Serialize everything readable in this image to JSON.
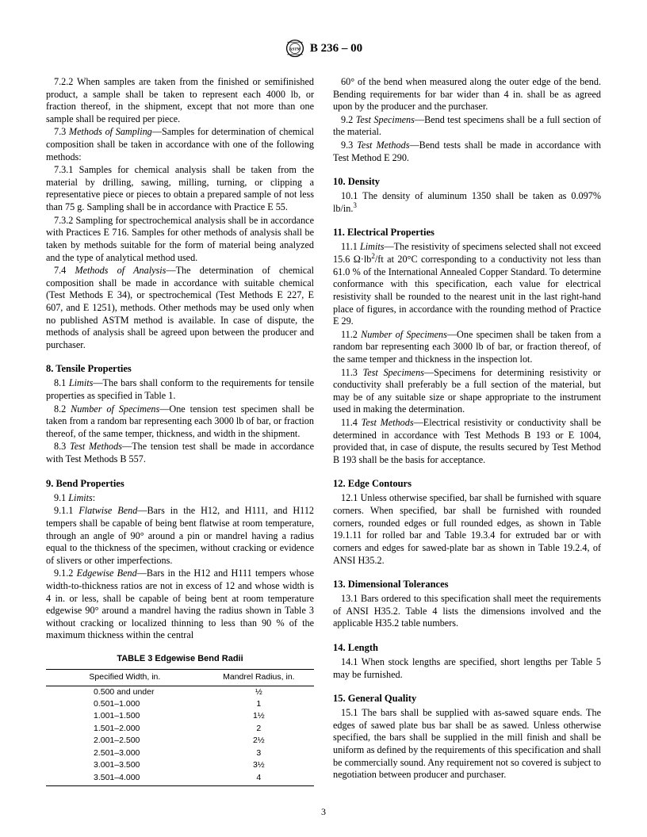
{
  "header": {
    "designation": "B 236 – 00"
  },
  "left": {
    "p722": "7.2.2 When samples are taken from the finished or semifinished product, a sample shall be taken to represent each 4000 lb, or fraction thereof, in the shipment, except that not more than one sample shall be required per piece.",
    "p73_label": "Methods of Sampling",
    "p73": "—Samples for determination of chemical composition shall be taken in accordance with one of the following methods:",
    "p731": "7.3.1 Samples for chemical analysis shall be taken from the material by drilling, sawing, milling, turning, or clipping a representative piece or pieces to obtain a prepared sample of not less than 75 g. Sampling shall be in accordance with Practice E 55.",
    "p732": "7.3.2 Sampling for spectrochemical analysis shall be in accordance with Practices E 716. Samples for other methods of analysis shall be taken by methods suitable for the form of material being analyzed and the type of analytical method used.",
    "p74_label": "Methods of Analysis",
    "p74": "—The determination of chemical composition shall be made in accordance with suitable chemical (Test Methods E 34), or spectrochemical (Test Methods E 227, E 607, and E 1251), methods. Other methods may be used only when no published ASTM method is available. In case of dispute, the methods of analysis shall be agreed upon between the producer and purchaser.",
    "h8": "8. Tensile Properties",
    "p81_label": "Limits",
    "p81": "—The bars shall conform to the requirements for tensile properties as specified in Table 1.",
    "p82_label": "Number of Specimens",
    "p82": "—One tension test specimen shall be taken from a random bar representing each 3000 lb of bar, or fraction thereof, of the same temper, thickness, and width in the shipment.",
    "p83_label": "Test Methods",
    "p83": "—The tension test shall be made in accordance with Test Methods B 557.",
    "h9": "9. Bend Properties",
    "p91_label": "Limits",
    "p91": ":",
    "p911_label": "Flatwise Bend",
    "p911": "—Bars in the H12, and H111, and H112 tempers shall be capable of being bent flatwise at room temperature, through an angle of 90° around a pin or mandrel having a radius equal to the thickness of the specimen, without cracking or evidence of slivers or other imperfections.",
    "p912_label": "Edgewise Bend",
    "p912": "—Bars in the H12 and H111 tempers whose width-to-thickness ratios are not in excess of 12 and whose width is 4 in. or less, shall be capable of being bent at room temperature edgewise 90° around a mandrel having the radius shown in Table 3 without cracking or localized thinning to less than 90 % of the maximum thickness within the central"
  },
  "table3": {
    "title": "TABLE 3  Edgewise Bend Radii",
    "col1": "Specified Width, in.",
    "col2": "Mandrel Radius, in.",
    "rows": [
      [
        "0.500 and under",
        "½"
      ],
      [
        "0.501–1.000",
        "1"
      ],
      [
        "1.001–1.500",
        "1½"
      ],
      [
        "1.501–2.000",
        "2"
      ],
      [
        "2.001–2.500",
        "2½"
      ],
      [
        "2.501–3.000",
        "3"
      ],
      [
        "3.001–3.500",
        "3½"
      ],
      [
        "3.501–4.000",
        "4"
      ]
    ]
  },
  "right": {
    "cont": "60° of the bend when measured along the outer edge of the bend. Bending requirements for bar wider than 4 in. shall be as agreed upon by the producer and the purchaser.",
    "p92_label": "Test Specimens",
    "p92": "—Bend test specimens shall be a full section of the material.",
    "p93_label": "Test Methods",
    "p93": "—Bend tests shall be made in accordance with Test Method E 290.",
    "h10": "10. Density",
    "p101a": "10.1 The density of aluminum 1350 shall be taken as 0.097% lb/in.",
    "h11": "11. Electrical Properties",
    "p111_label": "Limits",
    "p111a": "—The resistivity of specimens selected shall not exceed 15.6 Ω·lb",
    "p111b": "/ft at 20°C corresponding to a conductivity not less than 61.0 % of the International Annealed Copper Standard. To determine conformance with this specification, each value for electrical resistivity shall be rounded to the nearest unit in the last right-hand place of figures, in accordance with the rounding method of Practice E 29.",
    "p112_label": "Number of Specimens",
    "p112": "—One specimen shall be taken from a random bar representing each 3000 lb of bar, or fraction thereof, of the same temper and thickness in the inspection lot.",
    "p113_label": "Test Specimens",
    "p113": "—Specimens for determining resistivity or conductivity shall preferably be a full section of the material, but may be of any suitable size or shape appropriate to the instrument used in making the determination.",
    "p114_label": "Test Methods",
    "p114": "—Electrical resistivity or conductivity shall be determined in accordance with Test Methods B 193 or E 1004, provided that, in case of dispute, the results secured by Test Method B 193 shall be the basis for acceptance.",
    "h12": "12. Edge Contours",
    "p121": "12.1 Unless otherwise specified, bar shall be furnished with square corners. When specified, bar shall be furnished with rounded corners, rounded edges or full rounded edges, as shown in Table 19.1.11 for rolled bar and Table 19.3.4 for extruded bar or with corners and edges for sawed-plate bar as shown in Table 19.2.4, of ANSI H35.2.",
    "h13": "13. Dimensional Tolerances",
    "p131": "13.1 Bars ordered to this specification shall meet the requirements of ANSI H35.2. Table 4 lists the dimensions involved and the applicable H35.2 table numbers.",
    "h14": "14. Length",
    "p141": "14.1 When stock lengths are specified, short lengths per Table 5 may be furnished.",
    "h15": "15. General Quality",
    "p151": "15.1 The bars shall be supplied with as-sawed square ends. The edges of sawed plate bus bar shall be as sawed. Unless otherwise specified, the bars shall be supplied in the mill finish and shall be uniform as defined by the requirements of this specification and shall be commercially sound. Any requirement not so covered is subject to negotiation between producer and purchaser."
  },
  "pagenum": "3"
}
